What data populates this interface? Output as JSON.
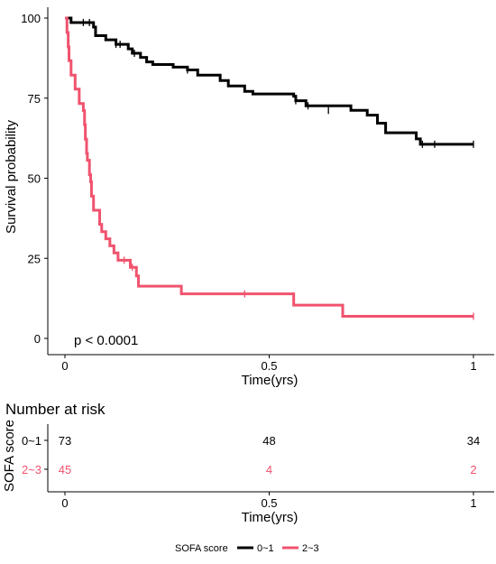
{
  "chart_data": {
    "type": "line",
    "subtype": "kaplan-meier",
    "xlabel": "Time(yrs)",
    "ylabel": "Survival probability",
    "xlim": [
      0,
      1
    ],
    "ylim": [
      0,
      100
    ],
    "x_ticks": [
      0,
      0.5,
      1
    ],
    "x_tick_labels": [
      "0",
      "0.5",
      "1"
    ],
    "y_ticks": [
      0,
      25,
      50,
      75,
      100
    ],
    "y_tick_labels": [
      "0",
      "25",
      "50",
      "75",
      "100"
    ],
    "annotation": "p < 0.0001",
    "legend": {
      "title": "SOFA score",
      "position": "bottom"
    },
    "series": [
      {
        "name": "0~1",
        "color": "#000000",
        "steps": [
          [
            0,
            100
          ],
          [
            0.015,
            98.6
          ],
          [
            0.07,
            97.2
          ],
          [
            0.075,
            94.5
          ],
          [
            0.1,
            93.2
          ],
          [
            0.125,
            91.8
          ],
          [
            0.155,
            90.4
          ],
          [
            0.165,
            89
          ],
          [
            0.185,
            87.7
          ],
          [
            0.2,
            86.3
          ],
          [
            0.215,
            85.5
          ],
          [
            0.265,
            84.7
          ],
          [
            0.3,
            83.8
          ],
          [
            0.325,
            82.2
          ],
          [
            0.38,
            80.5
          ],
          [
            0.4,
            78.8
          ],
          [
            0.44,
            77.1
          ],
          [
            0.46,
            76.3
          ],
          [
            0.56,
            75.6
          ],
          [
            0.565,
            74.2
          ],
          [
            0.59,
            72.6
          ],
          [
            0.7,
            71.2
          ],
          [
            0.74,
            69.7
          ],
          [
            0.765,
            67.2
          ],
          [
            0.785,
            64.2
          ],
          [
            0.86,
            62.3
          ],
          [
            0.87,
            60.6
          ],
          [
            1,
            60.6
          ]
        ],
        "censors": [
          [
            0.045,
            98.6
          ],
          [
            0.06,
            98.6
          ],
          [
            0.125,
            91.8
          ],
          [
            0.135,
            91.8
          ],
          [
            0.17,
            89
          ],
          [
            0.3,
            83.8
          ],
          [
            0.565,
            74.2
          ],
          [
            0.595,
            72.6
          ],
          [
            0.645,
            71.2
          ],
          [
            0.875,
            60.6
          ],
          [
            0.905,
            60.6
          ],
          [
            1,
            60.6
          ]
        ]
      },
      {
        "name": "2~3",
        "color": "#f0536e",
        "steps": [
          [
            0,
            100
          ],
          [
            0.005,
            95.5
          ],
          [
            0.008,
            91
          ],
          [
            0.01,
            86.7
          ],
          [
            0.015,
            82.2
          ],
          [
            0.025,
            77.8
          ],
          [
            0.035,
            73.3
          ],
          [
            0.045,
            71.1
          ],
          [
            0.048,
            66.7
          ],
          [
            0.05,
            62.2
          ],
          [
            0.053,
            57.8
          ],
          [
            0.055,
            55.6
          ],
          [
            0.06,
            51.1
          ],
          [
            0.063,
            48.9
          ],
          [
            0.065,
            44.4
          ],
          [
            0.07,
            40
          ],
          [
            0.085,
            35.6
          ],
          [
            0.09,
            33.3
          ],
          [
            0.1,
            31.1
          ],
          [
            0.11,
            28.9
          ],
          [
            0.12,
            26.7
          ],
          [
            0.13,
            24.4
          ],
          [
            0.16,
            22.2
          ],
          [
            0.175,
            19.5
          ],
          [
            0.18,
            16.3
          ],
          [
            0.285,
            13.9
          ],
          [
            0.56,
            10.4
          ],
          [
            0.68,
            6.9
          ],
          [
            1,
            6.9
          ]
        ],
        "censors": [
          [
            0.145,
            24.4
          ],
          [
            0.165,
            22.2
          ],
          [
            0.44,
            13.9
          ],
          [
            1,
            6.9
          ]
        ]
      }
    ],
    "risk_table": {
      "title": "Number at risk",
      "ylabel": "SOFA score",
      "xlabel": "Time(yrs)",
      "x_ticks": [
        0,
        0.5,
        1
      ],
      "x_tick_labels": [
        "0",
        "0.5",
        "1"
      ],
      "rows": [
        {
          "name": "0~1",
          "color": "#000000",
          "values": [
            "73",
            "48",
            "34"
          ]
        },
        {
          "name": "2~3",
          "color": "#f0536e",
          "values": [
            "45",
            "4",
            "2"
          ]
        }
      ]
    }
  }
}
